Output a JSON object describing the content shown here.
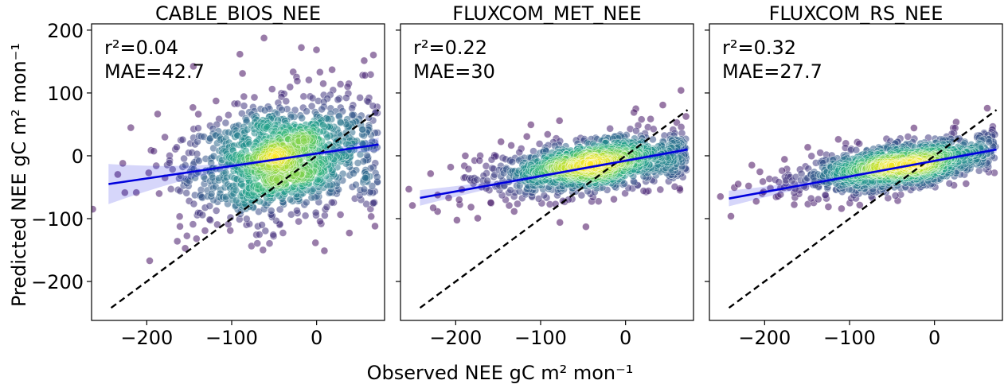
{
  "figure": {
    "xlabel": "Observed NEE gC m² mon⁻¹",
    "ylabel": "Predicted NEE gC m² mon⁻¹"
  },
  "chart_data": [
    {
      "type": "scatter",
      "title": "CABLE_BIOS_NEE",
      "annotation": [
        "r²=0.04",
        "MAE=42.7"
      ],
      "xlim": [
        -265,
        80
      ],
      "ylim": [
        -262,
        210
      ],
      "xticks": [
        -200,
        -100,
        0
      ],
      "xtick_labels": [
        "−200",
        "−100",
        "0"
      ],
      "yticks": [
        -200,
        -100,
        0,
        100,
        200
      ],
      "ytick_labels": [
        "−200",
        "−100",
        "0",
        "100",
        "200"
      ],
      "identity_line": {
        "x": [
          -242,
          73
        ],
        "y": [
          -242,
          73
        ]
      },
      "regression": {
        "x": [
          -245,
          73
        ],
        "y": [
          -45,
          18
        ]
      },
      "cloud": {
        "x_mean": -40,
        "x_sd": 55,
        "y_mean": -5,
        "y_sd": 45,
        "corr": 0.2,
        "n": 1300,
        "seed": 11
      },
      "colormap": "viridis",
      "point_color": "#5b2d7a",
      "regression_color": "#0000dd",
      "identity_color": "#000000"
    },
    {
      "type": "scatter",
      "title": "FLUXCOM_MET_NEE",
      "annotation": [
        "r²=0.22",
        "MAE=30"
      ],
      "xlim": [
        -265,
        80
      ],
      "ylim": [
        -262,
        210
      ],
      "xticks": [
        -200,
        -100,
        0
      ],
      "xtick_labels": [
        "−200",
        "−100",
        "0"
      ],
      "yticks": [
        -200,
        -100,
        0,
        100,
        200
      ],
      "ytick_labels": [],
      "identity_line": {
        "x": [
          -242,
          73
        ],
        "y": [
          -242,
          73
        ]
      },
      "regression": {
        "x": [
          -242,
          73
        ],
        "y": [
          -67,
          10
        ]
      },
      "cloud": {
        "x_mean": -40,
        "x_sd": 55,
        "y_mean": -15,
        "y_sd": 22,
        "corr": 0.45,
        "n": 1300,
        "seed": 23
      },
      "colormap": "viridis",
      "point_color": "#5b2d7a",
      "regression_color": "#0000dd",
      "identity_color": "#000000"
    },
    {
      "type": "scatter",
      "title": "FLUXCOM_RS_NEE",
      "annotation": [
        "r²=0.32",
        "MAE=27.7"
      ],
      "xlim": [
        -265,
        80
      ],
      "ylim": [
        -262,
        210
      ],
      "xticks": [
        -200,
        -100,
        0
      ],
      "xtick_labels": [
        "−200",
        "−100",
        "0"
      ],
      "yticks": [
        -200,
        -100,
        0,
        100,
        200
      ],
      "ytick_labels": [],
      "identity_line": {
        "x": [
          -242,
          73
        ],
        "y": [
          -242,
          73
        ]
      },
      "regression": {
        "x": [
          -242,
          73
        ],
        "y": [
          -68,
          10
        ]
      },
      "cloud": {
        "x_mean": -40,
        "x_sd": 55,
        "y_mean": -15,
        "y_sd": 20,
        "corr": 0.55,
        "n": 1300,
        "seed": 37
      },
      "colormap": "viridis",
      "point_color": "#5b2d7a",
      "regression_color": "#0000dd",
      "identity_color": "#000000"
    }
  ]
}
